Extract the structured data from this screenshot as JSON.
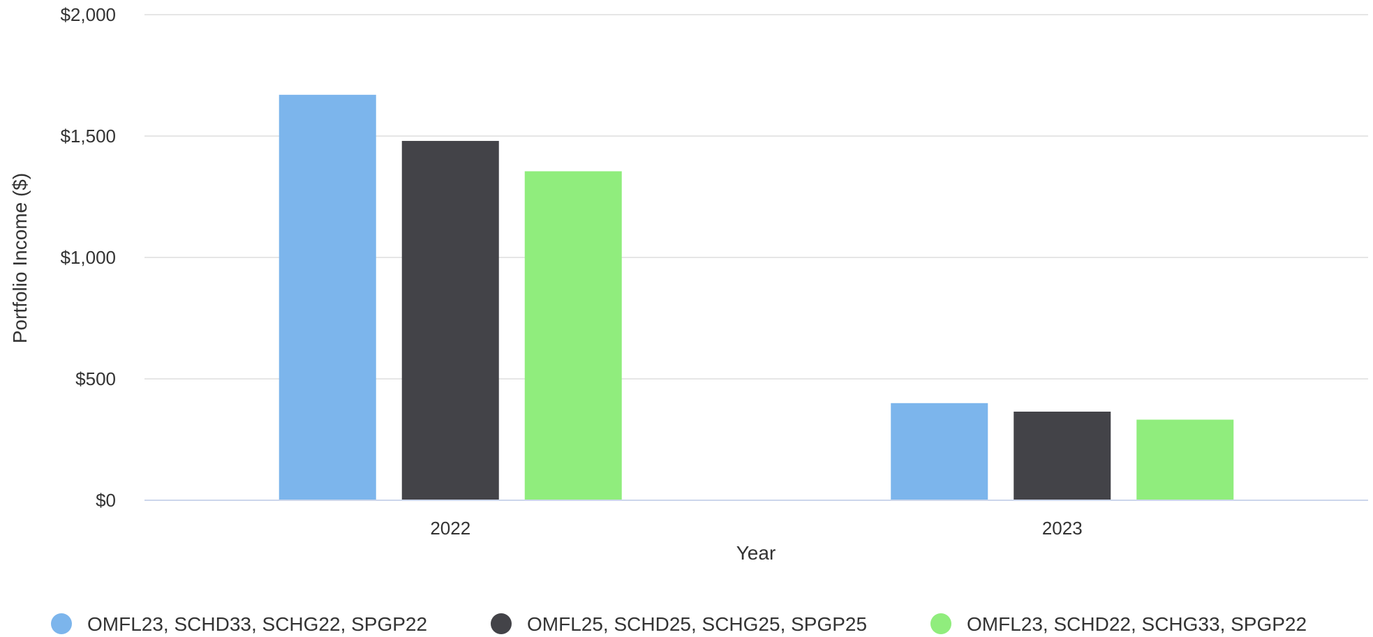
{
  "chart_data": {
    "type": "bar",
    "title": "",
    "xlabel": "Year",
    "ylabel": "Portfolio Income ($)",
    "categories": [
      "2022",
      "2023"
    ],
    "ylim": [
      0,
      2000
    ],
    "yticks": [
      0,
      500,
      1000,
      1500,
      2000
    ],
    "ytick_labels": [
      "$0",
      "$500",
      "$1,000",
      "$1,500",
      "$2,000"
    ],
    "grid": true,
    "legend_position": "bottom",
    "series": [
      {
        "name": "OMFL23, SCHD33, SCHG22, SPGP22",
        "color": "#7cb5ec",
        "values": [
          1670,
          400
        ]
      },
      {
        "name": "OMFL25, SCHD25, SCHG25, SPGP25",
        "color": "#434348",
        "values": [
          1480,
          365
        ]
      },
      {
        "name": "OMFL23, SCHD22, SCHG33, SPGP22",
        "color": "#90ed7d",
        "values": [
          1355,
          332
        ]
      }
    ]
  }
}
